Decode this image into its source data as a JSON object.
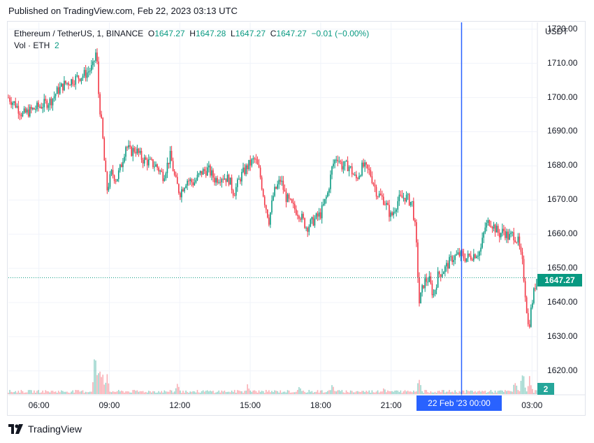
{
  "published": "Published on TradingView.com, Feb 22, 2023 03:13 UTC",
  "legend": {
    "symbol": "Ethereum / TetherUS, 1, BINANCE",
    "o_label": "O",
    "o": "1647.27",
    "h_label": "H",
    "h": "1647.28",
    "l_label": "L",
    "l": "1647.27",
    "c_label": "C",
    "c": "1647.27",
    "change": "−0.01 (−0.00%)",
    "vol_label": "Vol · ETH",
    "vol_value": "2"
  },
  "currency": "USDT",
  "last_price_label": "1647.27",
  "last_volume_label": "2",
  "crosshair_label": "22 Feb '23   00:00",
  "brand": "TradingView",
  "colors": {
    "up": "#089981",
    "down": "#f23645",
    "crosshair": "#2962ff",
    "grid": "#f0f3fa"
  },
  "chart_data": {
    "type": "candlestick",
    "interval": "1 minute",
    "y_ticks": [
      "1620.00",
      "1630.00",
      "1640.00",
      "1650.00",
      "1660.00",
      "1670.00",
      "1680.00",
      "1690.00",
      "1700.00",
      "1710.00",
      "1720.00"
    ],
    "x_ticks": [
      "06:00",
      "09:00",
      "12:00",
      "15:00",
      "18:00",
      "21:00",
      "03:00"
    ],
    "ylim": [
      1613,
      1722
    ],
    "x_range_hours": [
      4.7,
      27.2
    ],
    "crosshair_time": "22 Feb '23 00:00",
    "last_price": 1647.27,
    "close_path": [
      [
        4.7,
        1700
      ],
      [
        5.0,
        1698
      ],
      [
        5.3,
        1695
      ],
      [
        5.6,
        1696
      ],
      [
        5.9,
        1697
      ],
      [
        6.2,
        1698
      ],
      [
        6.5,
        1699
      ],
      [
        6.8,
        1702
      ],
      [
        7.1,
        1704
      ],
      [
        7.4,
        1705
      ],
      [
        7.7,
        1706
      ],
      [
        8.0,
        1707
      ],
      [
        8.3,
        1709
      ],
      [
        8.45,
        1714
      ],
      [
        8.55,
        1700
      ],
      [
        8.7,
        1690
      ],
      [
        8.8,
        1680
      ],
      [
        8.9,
        1673
      ],
      [
        9.1,
        1678
      ],
      [
        9.3,
        1676
      ],
      [
        9.5,
        1680
      ],
      [
        9.7,
        1686
      ],
      [
        9.9,
        1684
      ],
      [
        10.1,
        1685
      ],
      [
        10.4,
        1682
      ],
      [
        10.7,
        1681
      ],
      [
        11.0,
        1680
      ],
      [
        11.3,
        1677
      ],
      [
        11.6,
        1683
      ],
      [
        11.8,
        1676
      ],
      [
        12.0,
        1672
      ],
      [
        12.3,
        1676
      ],
      [
        12.6,
        1675
      ],
      [
        12.9,
        1678
      ],
      [
        13.2,
        1679
      ],
      [
        13.5,
        1676
      ],
      [
        13.8,
        1677
      ],
      [
        14.1,
        1676
      ],
      [
        14.3,
        1672
      ],
      [
        14.6,
        1677
      ],
      [
        14.9,
        1680
      ],
      [
        15.2,
        1682
      ],
      [
        15.4,
        1678
      ],
      [
        15.6,
        1670
      ],
      [
        15.8,
        1664
      ],
      [
        16.0,
        1672
      ],
      [
        16.3,
        1676
      ],
      [
        16.5,
        1671
      ],
      [
        16.8,
        1668
      ],
      [
        17.1,
        1666
      ],
      [
        17.4,
        1662
      ],
      [
        17.7,
        1664
      ],
      [
        18.0,
        1666
      ],
      [
        18.3,
        1672
      ],
      [
        18.5,
        1680
      ],
      [
        18.7,
        1683
      ],
      [
        18.9,
        1680
      ],
      [
        19.2,
        1680
      ],
      [
        19.5,
        1676
      ],
      [
        19.8,
        1680
      ],
      [
        20.1,
        1678
      ],
      [
        20.4,
        1672
      ],
      [
        20.7,
        1670
      ],
      [
        21.0,
        1665
      ],
      [
        21.3,
        1670
      ],
      [
        21.6,
        1671
      ],
      [
        21.9,
        1669
      ],
      [
        22.05,
        1660
      ],
      [
        22.2,
        1640
      ],
      [
        22.4,
        1646
      ],
      [
        22.6,
        1647
      ],
      [
        22.8,
        1642
      ],
      [
        23.0,
        1648
      ],
      [
        23.3,
        1650
      ],
      [
        23.6,
        1653
      ],
      [
        23.9,
        1654
      ],
      [
        24.2,
        1653
      ],
      [
        24.5,
        1654
      ],
      [
        24.8,
        1655
      ],
      [
        25.0,
        1662
      ],
      [
        25.2,
        1664
      ],
      [
        25.4,
        1662
      ],
      [
        25.6,
        1660
      ],
      [
        25.8,
        1661
      ],
      [
        26.0,
        1659
      ],
      [
        26.2,
        1660
      ],
      [
        26.4,
        1658
      ],
      [
        26.6,
        1651
      ],
      [
        26.75,
        1640
      ],
      [
        26.85,
        1632
      ],
      [
        27.0,
        1640
      ],
      [
        27.2,
        1647.27
      ]
    ],
    "volume_spikes": [
      [
        8.4,
        29
      ],
      [
        8.6,
        18
      ],
      [
        8.7,
        14
      ],
      [
        8.9,
        12
      ],
      [
        11.9,
        7
      ],
      [
        14.9,
        6
      ],
      [
        17.1,
        5
      ],
      [
        18.5,
        6
      ],
      [
        20.7,
        4
      ],
      [
        22.2,
        12
      ],
      [
        26.3,
        10
      ],
      [
        26.6,
        17
      ],
      [
        26.9,
        12
      ]
    ],
    "volume_max": 30
  }
}
